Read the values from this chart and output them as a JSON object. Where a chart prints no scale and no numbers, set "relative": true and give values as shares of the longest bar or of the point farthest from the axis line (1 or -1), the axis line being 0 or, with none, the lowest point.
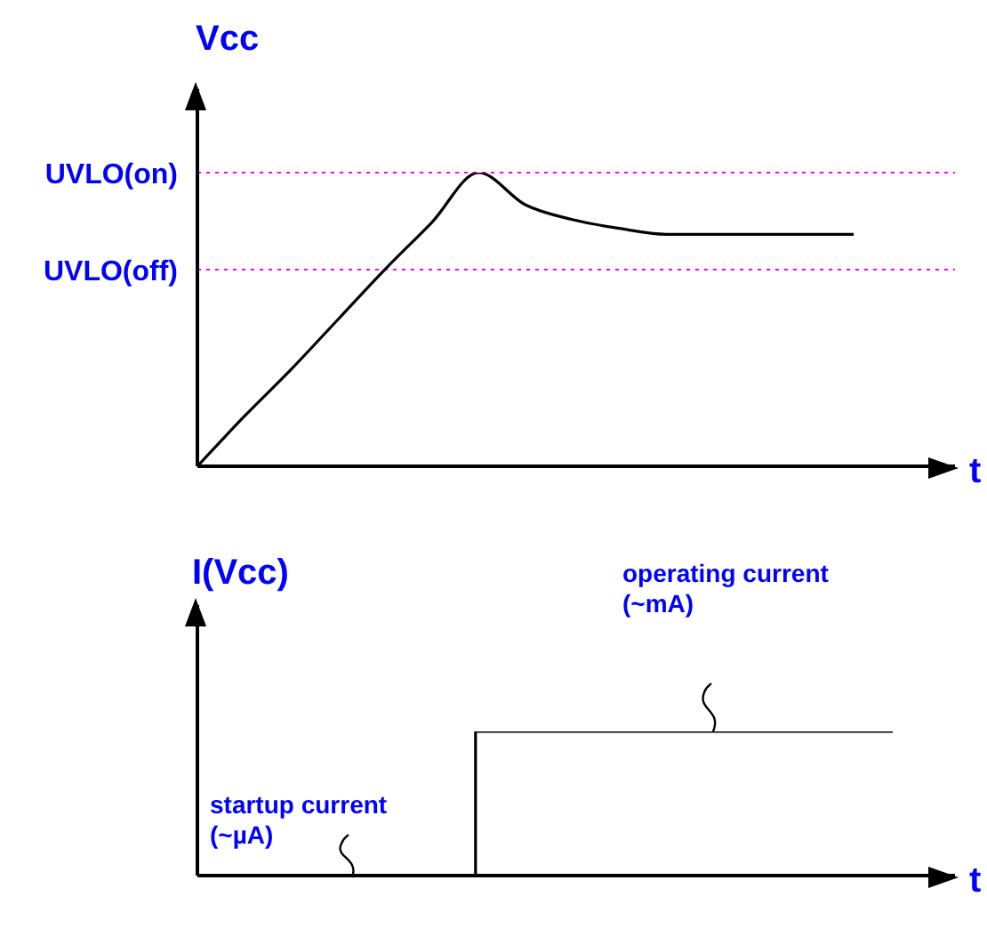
{
  "chart_data": [
    {
      "type": "line",
      "ylabel": "Vcc",
      "xlabel": "t",
      "relative": true,
      "categories": [
        null,
        null,
        null,
        null,
        null,
        null,
        null,
        null,
        null,
        null,
        null,
        null,
        null,
        null,
        null
      ],
      "series": [
        {
          "color": "#000000",
          "values": [
            0,
            0.17,
            0.33,
            0.5,
            0.67,
            0.83,
            1,
            0.89,
            0.84,
            0.81,
            0.79,
            0.79,
            0.79,
            0.79,
            0.79
          ]
        }
      ],
      "ref_lines": [
        {
          "axis": "y",
          "value": 1,
          "label": "UVLO(on)",
          "color": "#ff00ff",
          "line_style": "dotted"
        },
        {
          "axis": "y",
          "value": 0.67,
          "label": "UVLO(off)",
          "color": "#ff00ff",
          "line_style": "dotted"
        }
      ],
      "marker": "none",
      "line_style": "solid"
    },
    {
      "type": "step",
      "ylabel": "I(Vcc)",
      "xlabel": "t",
      "relative": true,
      "categories": [
        null,
        null,
        null,
        null,
        null,
        null
      ],
      "series": [
        {
          "color": "#000000",
          "values": [
            0,
            0,
            1,
            1,
            1,
            1
          ]
        }
      ],
      "annotations": [
        "startup current (~µA)",
        "operating current (~mA)"
      ],
      "marker": "none",
      "line_style": "solid"
    }
  ]
}
